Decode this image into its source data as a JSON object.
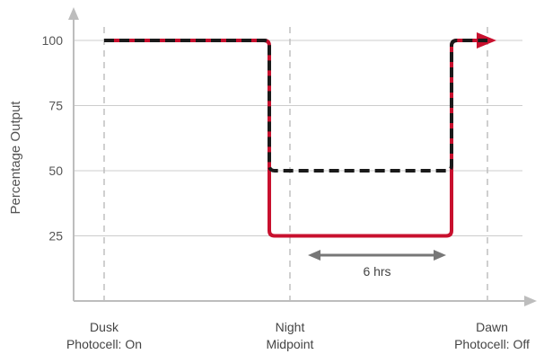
{
  "chart_data": {
    "type": "line",
    "title": "",
    "xlabel": "",
    "ylabel": "Percentage Output",
    "ylim": [
      0,
      110
    ],
    "yticks": [
      25,
      50,
      75,
      100
    ],
    "x_categories": [
      {
        "id": "dusk",
        "line1": "Dusk",
        "line2": "Photocell: On"
      },
      {
        "id": "midpoint",
        "line1": "Night",
        "line2": "Midpoint"
      },
      {
        "id": "dawn",
        "line1": "Dawn",
        "line2": "Photocell: Off"
      }
    ],
    "grid": {
      "horizontal": true,
      "vertical_dashed_at_categories": true
    },
    "series": [
      {
        "style": "solid",
        "color": "#c8102e",
        "points": [
          {
            "x": "dusk",
            "y": 100
          },
          {
            "x": "midpoint",
            "y": 100
          },
          {
            "x": "midpoint",
            "y": 25
          },
          {
            "x": "midpoint+6h",
            "y": 25
          },
          {
            "x": "midpoint+6h",
            "y": 100
          },
          {
            "x": "dawn",
            "y": 100
          }
        ]
      },
      {
        "style": "dashed",
        "color": "#1a1a1a",
        "points": [
          {
            "x": "dusk",
            "y": 100
          },
          {
            "x": "midpoint",
            "y": 100
          },
          {
            "x": "midpoint",
            "y": 50
          },
          {
            "x": "midpoint+6h",
            "y": 50
          },
          {
            "x": "midpoint+6h",
            "y": 100
          },
          {
            "x": "dawn",
            "y": 100
          }
        ]
      }
    ],
    "annotations": [
      {
        "type": "span-arrow",
        "label": "6 hrs",
        "from": "midpoint",
        "to": "midpoint+6h",
        "color": "#777777"
      }
    ]
  }
}
